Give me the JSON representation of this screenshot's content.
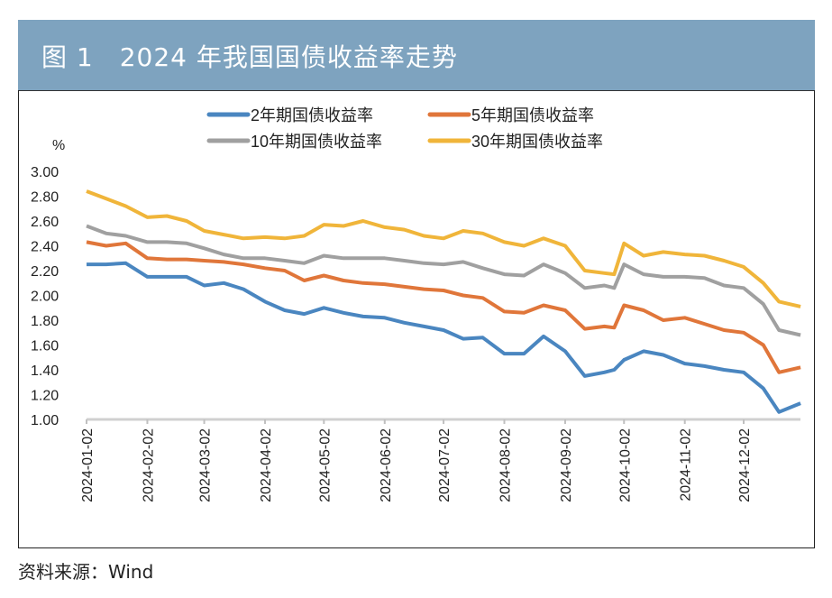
{
  "header": {
    "title": "图 1　2024 年我国国债收益率走势"
  },
  "source": "资料来源：Wind",
  "chart_data": {
    "type": "line",
    "title": "2024 年我国国债收益率走势",
    "ylabel": "%",
    "ylim": [
      1.0,
      3.0
    ],
    "yticks": [
      "1.00",
      "1.20",
      "1.40",
      "1.60",
      "1.80",
      "2.00",
      "2.20",
      "2.40",
      "2.60",
      "2.80",
      "3.00"
    ],
    "xticks": [
      "2024-01-02",
      "2024-02-02",
      "2024-03-02",
      "2024-04-02",
      "2024-05-02",
      "2024-06-02",
      "2024-07-02",
      "2024-08-02",
      "2024-09-02",
      "2024-10-02",
      "2024-11-02",
      "2024-12-02"
    ],
    "legend_position": "top",
    "grid": false,
    "dates": [
      "2024-01-02",
      "2024-01-12",
      "2024-01-22",
      "2024-02-02",
      "2024-02-12",
      "2024-02-22",
      "2024-03-02",
      "2024-03-12",
      "2024-03-22",
      "2024-04-02",
      "2024-04-12",
      "2024-04-22",
      "2024-05-02",
      "2024-05-12",
      "2024-05-22",
      "2024-06-02",
      "2024-06-12",
      "2024-06-22",
      "2024-07-02",
      "2024-07-12",
      "2024-07-22",
      "2024-08-02",
      "2024-08-12",
      "2024-08-22",
      "2024-09-02",
      "2024-09-12",
      "2024-09-22",
      "2024-09-27",
      "2024-10-02",
      "2024-10-12",
      "2024-10-22",
      "2024-11-02",
      "2024-11-12",
      "2024-11-22",
      "2024-12-02",
      "2024-12-12",
      "2024-12-20",
      "2024-12-31"
    ],
    "series": [
      {
        "name": "2年期国债收益率",
        "color": "#4a86c0",
        "values": [
          2.25,
          2.25,
          2.26,
          2.15,
          2.15,
          2.15,
          2.08,
          2.1,
          2.05,
          1.95,
          1.88,
          1.85,
          1.9,
          1.86,
          1.83,
          1.82,
          1.78,
          1.75,
          1.72,
          1.65,
          1.66,
          1.53,
          1.53,
          1.67,
          1.55,
          1.35,
          1.38,
          1.4,
          1.48,
          1.55,
          1.52,
          1.45,
          1.43,
          1.4,
          1.38,
          1.25,
          1.06,
          1.13
        ]
      },
      {
        "name": "5年期国债收益率",
        "color": "#e0763a",
        "values": [
          2.43,
          2.4,
          2.42,
          2.3,
          2.29,
          2.29,
          2.28,
          2.27,
          2.25,
          2.22,
          2.2,
          2.12,
          2.16,
          2.12,
          2.1,
          2.09,
          2.07,
          2.05,
          2.04,
          2.0,
          1.98,
          1.87,
          1.86,
          1.92,
          1.88,
          1.73,
          1.75,
          1.74,
          1.92,
          1.88,
          1.8,
          1.82,
          1.77,
          1.72,
          1.7,
          1.6,
          1.38,
          1.42
        ]
      },
      {
        "name": "10年期国债收益率",
        "color": "#a0a0a0",
        "values": [
          2.56,
          2.5,
          2.48,
          2.43,
          2.43,
          2.42,
          2.38,
          2.33,
          2.3,
          2.3,
          2.28,
          2.26,
          2.32,
          2.3,
          2.3,
          2.3,
          2.28,
          2.26,
          2.25,
          2.27,
          2.22,
          2.17,
          2.16,
          2.25,
          2.18,
          2.06,
          2.08,
          2.06,
          2.25,
          2.17,
          2.15,
          2.15,
          2.14,
          2.08,
          2.06,
          1.93,
          1.72,
          1.68
        ]
      },
      {
        "name": "30年期国债收益率",
        "color": "#f0b53a",
        "values": [
          2.84,
          2.78,
          2.72,
          2.63,
          2.64,
          2.6,
          2.52,
          2.49,
          2.46,
          2.47,
          2.46,
          2.48,
          2.57,
          2.56,
          2.6,
          2.55,
          2.53,
          2.48,
          2.46,
          2.52,
          2.5,
          2.43,
          2.4,
          2.46,
          2.4,
          2.2,
          2.18,
          2.17,
          2.42,
          2.32,
          2.35,
          2.33,
          2.32,
          2.28,
          2.23,
          2.1,
          1.95,
          1.91
        ]
      }
    ]
  }
}
